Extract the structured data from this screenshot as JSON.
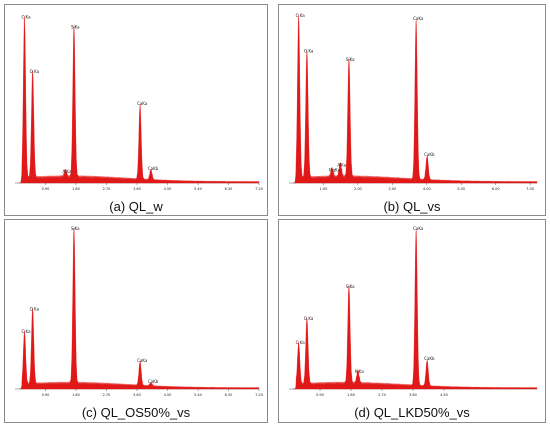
{
  "chart_data": [
    {
      "type": "line",
      "panel": "a",
      "caption": "(a)   QL_w",
      "xlim": [
        0,
        7.2
      ],
      "ylim": [
        0,
        1
      ],
      "x_ticks": [
        "0.90",
        "1.80",
        "2.70",
        "3.60",
        "4.50",
        "5.40",
        "6.30",
        "7.20"
      ],
      "x_tick_values": [
        0.9,
        1.8,
        2.7,
        3.6,
        4.5,
        5.4,
        6.3,
        7.2
      ],
      "color": "#e01818",
      "peaks": [
        {
          "label": "C Ka",
          "x": 0.28,
          "y": 0.95
        },
        {
          "label": "O Ka",
          "x": 0.52,
          "y": 0.63
        },
        {
          "label": "SiKa",
          "x": 1.74,
          "y": 0.89
        },
        {
          "label": "AlKa",
          "x": 1.49,
          "y": 0.04
        },
        {
          "label": "CaKa",
          "x": 3.69,
          "y": 0.44
        },
        {
          "label": "CaKb",
          "x": 4.01,
          "y": 0.06
        }
      ]
    },
    {
      "type": "line",
      "panel": "b",
      "caption": "(b)   QL_vs",
      "xlim": [
        0,
        7.2
      ],
      "ylim": [
        0,
        1
      ],
      "x_ticks": [
        "1.00",
        "2.00",
        "3.00",
        "4.00",
        "5.00",
        "6.00",
        "7.00"
      ],
      "x_tick_values": [
        1.0,
        2.0,
        3.0,
        4.0,
        5.0,
        6.0,
        7.0
      ],
      "color": "#e01818",
      "peaks": [
        {
          "label": "C Ka",
          "x": 0.28,
          "y": 0.96
        },
        {
          "label": "O Ka",
          "x": 0.52,
          "y": 0.75
        },
        {
          "label": "MgKa",
          "x": 1.25,
          "y": 0.05
        },
        {
          "label": "AlKa",
          "x": 1.49,
          "y": 0.08
        },
        {
          "label": "SiKa",
          "x": 1.74,
          "y": 0.7
        },
        {
          "label": "CaKa",
          "x": 3.69,
          "y": 0.94
        },
        {
          "label": "CaKb",
          "x": 4.01,
          "y": 0.14
        }
      ]
    },
    {
      "type": "line",
      "panel": "c",
      "caption": "(c)   QL_OS50%_vs",
      "xlim": [
        0,
        7.2
      ],
      "ylim": [
        0,
        1
      ],
      "x_ticks": [
        "0.90",
        "1.80",
        "2.70",
        "3.60",
        "4.50",
        "5.40",
        "6.30",
        "7.20"
      ],
      "x_tick_values": [
        0.9,
        1.8,
        2.7,
        3.6,
        4.5,
        5.4,
        6.3,
        7.2
      ],
      "color": "#e01818",
      "peaks": [
        {
          "label": "C Ka",
          "x": 0.28,
          "y": 0.33
        },
        {
          "label": "O Ka",
          "x": 0.52,
          "y": 0.47
        },
        {
          "label": "SiKa",
          "x": 1.74,
          "y": 0.97
        },
        {
          "label": "CaKa",
          "x": 3.69,
          "y": 0.15
        },
        {
          "label": "CaKb",
          "x": 4.01,
          "y": 0.02
        }
      ]
    },
    {
      "type": "line",
      "panel": "d",
      "caption": "(d)   QL_LKD50%_vs",
      "xlim": [
        0,
        7.2
      ],
      "ylim": [
        0,
        1
      ],
      "x_ticks": [
        "0.90",
        "1.80",
        "2.70",
        "3.60",
        "4.50"
      ],
      "x_tick_values": [
        0.9,
        1.8,
        2.7,
        3.6,
        4.5
      ],
      "color": "#e01818",
      "peaks": [
        {
          "label": "C Ka",
          "x": 0.28,
          "y": 0.26
        },
        {
          "label": "O Ka",
          "x": 0.52,
          "y": 0.41
        },
        {
          "label": "SiKa",
          "x": 1.74,
          "y": 0.61
        },
        {
          "label": "K Ka",
          "x": 2.0,
          "y": 0.08
        },
        {
          "label": "CaKa",
          "x": 3.69,
          "y": 0.97
        },
        {
          "label": "CaKb",
          "x": 4.01,
          "y": 0.16
        }
      ]
    }
  ]
}
